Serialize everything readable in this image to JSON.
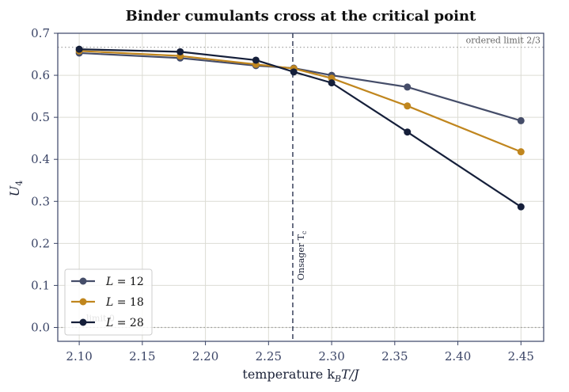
{
  "chart_data": {
    "type": "line",
    "title": "Binder cumulants cross at the critical point",
    "xlabel": "temperature  k_BT/J",
    "xlabel_parts": {
      "prefix": "temperature  k",
      "sub": "B",
      "suffix": "T/J"
    },
    "ylabel": "U_4",
    "ylabel_parts": {
      "main": "U",
      "sub": "4"
    },
    "xlim": [
      2.083,
      2.468
    ],
    "ylim": [
      -0.033,
      0.7
    ],
    "xticks": [
      2.1,
      2.15,
      2.2,
      2.25,
      2.3,
      2.35,
      2.4,
      2.45
    ],
    "xtick_labels": [
      "2.10",
      "2.15",
      "2.20",
      "2.25",
      "2.30",
      "2.35",
      "2.40",
      "2.45"
    ],
    "yticks": [
      0.0,
      0.1,
      0.2,
      0.3,
      0.4,
      0.5,
      0.6,
      0.7
    ],
    "ytick_labels": [
      "0.0",
      "0.1",
      "0.2",
      "0.3",
      "0.4",
      "0.5",
      "0.6",
      "0.7"
    ],
    "grid": true,
    "legend_position": "lower-left",
    "x": [
      2.1,
      2.18,
      2.24,
      2.27,
      2.3,
      2.36,
      2.45
    ],
    "series": [
      {
        "name": "L = 12",
        "name_parts": {
          "var": "L",
          "val": "12"
        },
        "color": "#454d69",
        "values": [
          0.653,
          0.641,
          0.623,
          0.617,
          0.6,
          0.572,
          0.492
        ]
      },
      {
        "name": "L = 18",
        "name_parts": {
          "var": "L",
          "val": "18"
        },
        "color": "#c0861e",
        "values": [
          0.658,
          0.646,
          0.626,
          0.616,
          0.593,
          0.527,
          0.418
        ]
      },
      {
        "name": "L = 28",
        "name_parts": {
          "var": "L",
          "val": "28"
        },
        "color": "#151f3a",
        "values": [
          0.662,
          0.656,
          0.636,
          0.608,
          0.582,
          0.465,
          0.287
        ]
      }
    ],
    "reference_lines": [
      {
        "orientation": "horizontal",
        "value": 0.6667,
        "label": "ordered limit 2/3",
        "style": "dotted"
      },
      {
        "orientation": "horizontal",
        "value": 0.0,
        "label": "limit 0",
        "style": "dotted"
      },
      {
        "orientation": "vertical",
        "value": 2.2692,
        "label": "Onsager T_c",
        "label_parts": {
          "main": "Onsager T",
          "sub": "c"
        },
        "style": "dashed"
      }
    ]
  }
}
